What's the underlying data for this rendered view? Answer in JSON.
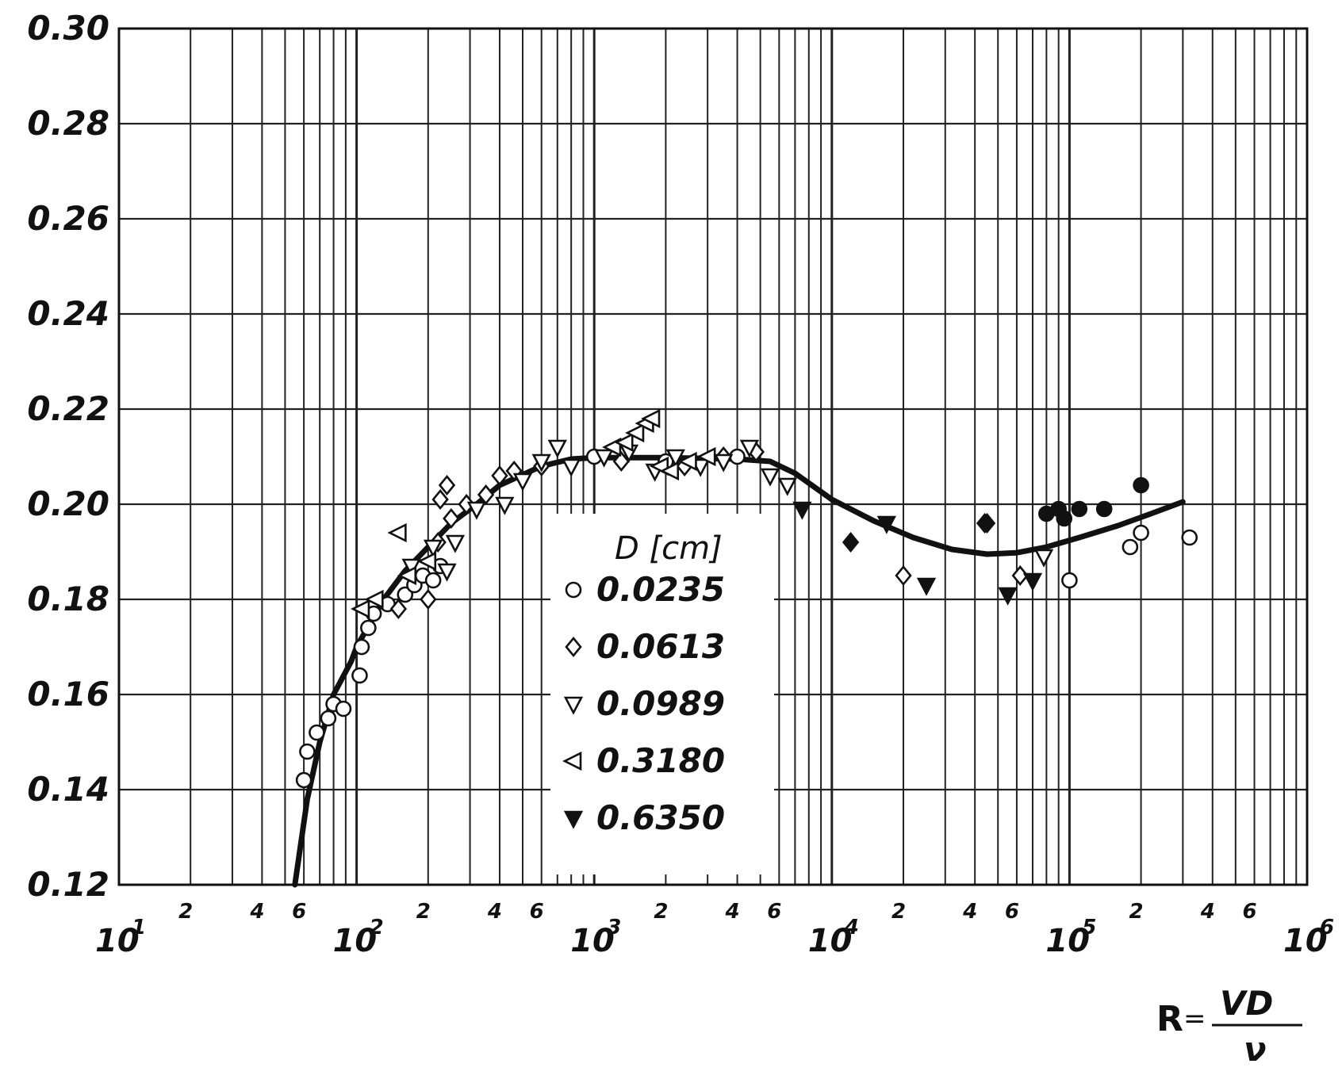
{
  "chart_data": {
    "type": "scatter",
    "title": "",
    "x_scale": "log",
    "xlim": [
      10,
      1000000
    ],
    "ylim": [
      0.12,
      0.3
    ],
    "grid": true,
    "legend_placement": "center",
    "legend_title": "D [cm]",
    "xlabel": {
      "symbol": "R",
      "equals": "=",
      "numerator": "VD",
      "denominator": "ν"
    },
    "ylabel": "",
    "y_ticks": [
      {
        "value": 0.12,
        "label": "0.12"
      },
      {
        "value": 0.14,
        "label": "0.14"
      },
      {
        "value": 0.16,
        "label": "0.16"
      },
      {
        "value": 0.18,
        "label": "0.18"
      },
      {
        "value": 0.2,
        "label": "0.20"
      },
      {
        "value": 0.22,
        "label": "0.22"
      },
      {
        "value": 0.24,
        "label": "0.24"
      },
      {
        "value": 0.26,
        "label": "0.26"
      },
      {
        "value": 0.28,
        "label": "0.28"
      },
      {
        "value": 0.3,
        "label": "0.30"
      }
    ],
    "x_major_ticks": [
      {
        "value": 10,
        "base": "10",
        "exp": "1"
      },
      {
        "value": 100,
        "base": "10",
        "exp": "2"
      },
      {
        "value": 1000,
        "base": "10",
        "exp": "3"
      },
      {
        "value": 10000,
        "base": "10",
        "exp": "4"
      },
      {
        "value": 100000,
        "base": "10",
        "exp": "5"
      },
      {
        "value": 1000000,
        "base": "10",
        "exp": "6"
      }
    ],
    "x_minor_ticks": [
      {
        "value": 20,
        "label": "2"
      },
      {
        "value": 40,
        "label": "4"
      },
      {
        "value": 60,
        "label": "6"
      },
      {
        "value": 200,
        "label": "2"
      },
      {
        "value": 400,
        "label": "4"
      },
      {
        "value": 600,
        "label": "6"
      },
      {
        "value": 2000,
        "label": "2"
      },
      {
        "value": 4000,
        "label": "4"
      },
      {
        "value": 6000,
        "label": "6"
      },
      {
        "value": 20000,
        "label": "2"
      },
      {
        "value": 40000,
        "label": "4"
      },
      {
        "value": 60000,
        "label": "6"
      },
      {
        "value": 200000,
        "label": "2"
      },
      {
        "value": 400000,
        "label": "4"
      },
      {
        "value": 600000,
        "label": "6"
      }
    ],
    "series": [
      {
        "name": "0.0235",
        "marker": "circle-open",
        "points": [
          [
            60,
            0.142
          ],
          [
            62,
            0.148
          ],
          [
            68,
            0.152
          ],
          [
            76,
            0.155
          ],
          [
            80,
            0.158
          ],
          [
            88,
            0.157
          ],
          [
            103,
            0.164
          ],
          [
            105,
            0.17
          ],
          [
            112,
            0.174
          ],
          [
            118,
            0.177
          ],
          [
            135,
            0.179
          ],
          [
            160,
            0.181
          ],
          [
            175,
            0.183
          ],
          [
            190,
            0.185
          ],
          [
            210,
            0.184
          ],
          [
            225,
            0.187
          ],
          [
            100000,
            0.184
          ],
          [
            180000,
            0.191
          ],
          [
            200000,
            0.194
          ],
          [
            320000,
            0.193
          ],
          [
            1000,
            0.21
          ],
          [
            2000,
            0.209
          ],
          [
            4000,
            0.21
          ]
        ]
      },
      {
        "name": "0.0613",
        "marker": "diamond-open",
        "points": [
          [
            150,
            0.178
          ],
          [
            200,
            0.18
          ],
          [
            220,
            0.192
          ],
          [
            225,
            0.201
          ],
          [
            240,
            0.204
          ],
          [
            250,
            0.197
          ],
          [
            290,
            0.2
          ],
          [
            350,
            0.202
          ],
          [
            400,
            0.206
          ],
          [
            460,
            0.207
          ],
          [
            600,
            0.208
          ],
          [
            1300,
            0.209
          ],
          [
            2400,
            0.208
          ],
          [
            3500,
            0.21
          ],
          [
            4800,
            0.211
          ],
          [
            20000,
            0.185
          ],
          [
            45000,
            0.196
          ],
          [
            62000,
            0.185
          ]
        ]
      },
      {
        "name": "0.0989",
        "marker": "triangle-down-open",
        "points": [
          [
            170,
            0.187
          ],
          [
            210,
            0.191
          ],
          [
            240,
            0.186
          ],
          [
            260,
            0.192
          ],
          [
            320,
            0.199
          ],
          [
            420,
            0.2
          ],
          [
            500,
            0.205
          ],
          [
            600,
            0.209
          ],
          [
            700,
            0.212
          ],
          [
            800,
            0.208
          ],
          [
            1100,
            0.21
          ],
          [
            1400,
            0.211
          ],
          [
            1800,
            0.207
          ],
          [
            2200,
            0.21
          ],
          [
            2800,
            0.208
          ],
          [
            3500,
            0.209
          ],
          [
            4500,
            0.212
          ],
          [
            5500,
            0.206
          ],
          [
            6500,
            0.204
          ],
          [
            78000,
            0.189
          ]
        ]
      },
      {
        "name": "0.3180",
        "marker": "triangle-left-open",
        "points": [
          [
            105,
            0.178
          ],
          [
            120,
            0.18
          ],
          [
            150,
            0.194
          ],
          [
            165,
            0.185
          ],
          [
            200,
            0.188
          ],
          [
            1200,
            0.212
          ],
          [
            1350,
            0.213
          ],
          [
            1500,
            0.215
          ],
          [
            1650,
            0.217
          ],
          [
            1750,
            0.218
          ],
          [
            1900,
            0.208
          ],
          [
            2100,
            0.207
          ],
          [
            2500,
            0.209
          ],
          [
            3000,
            0.21
          ]
        ]
      },
      {
        "name": "0.6350",
        "marker": "triangle-down-filled",
        "points": [
          [
            7500,
            0.199
          ],
          [
            17000,
            0.196
          ],
          [
            25000,
            0.183
          ],
          [
            55000,
            0.181
          ],
          [
            70000,
            0.184
          ]
        ]
      },
      {
        "name": "",
        "marker": "circle-filled",
        "points": [
          [
            80000,
            0.198
          ],
          [
            90000,
            0.199
          ],
          [
            95000,
            0.197
          ],
          [
            110000,
            0.199
          ],
          [
            140000,
            0.199
          ],
          [
            200000,
            0.204
          ]
        ]
      },
      {
        "name": "",
        "marker": "diamond-filled",
        "points": [
          [
            12000,
            0.192
          ],
          [
            44000,
            0.196
          ]
        ]
      }
    ],
    "fit_curve": [
      [
        55,
        0.12
      ],
      [
        62,
        0.138
      ],
      [
        70,
        0.15
      ],
      [
        80,
        0.16
      ],
      [
        95,
        0.167
      ],
      [
        100,
        0.17
      ],
      [
        130,
        0.18
      ],
      [
        160,
        0.186
      ],
      [
        200,
        0.191
      ],
      [
        250,
        0.196
      ],
      [
        320,
        0.2
      ],
      [
        400,
        0.204
      ],
      [
        600,
        0.208
      ],
      [
        800,
        0.2095
      ],
      [
        1000,
        0.2098
      ],
      [
        2000,
        0.2098
      ],
      [
        4000,
        0.2095
      ],
      [
        5500,
        0.209
      ],
      [
        7000,
        0.2065
      ],
      [
        10000,
        0.201
      ],
      [
        15000,
        0.1965
      ],
      [
        22000,
        0.193
      ],
      [
        32000,
        0.1905
      ],
      [
        45000,
        0.1895
      ],
      [
        60000,
        0.1898
      ],
      [
        80000,
        0.191
      ],
      [
        110000,
        0.193
      ],
      [
        160000,
        0.1955
      ],
      [
        220000,
        0.198
      ],
      [
        300000,
        0.2005
      ]
    ]
  }
}
